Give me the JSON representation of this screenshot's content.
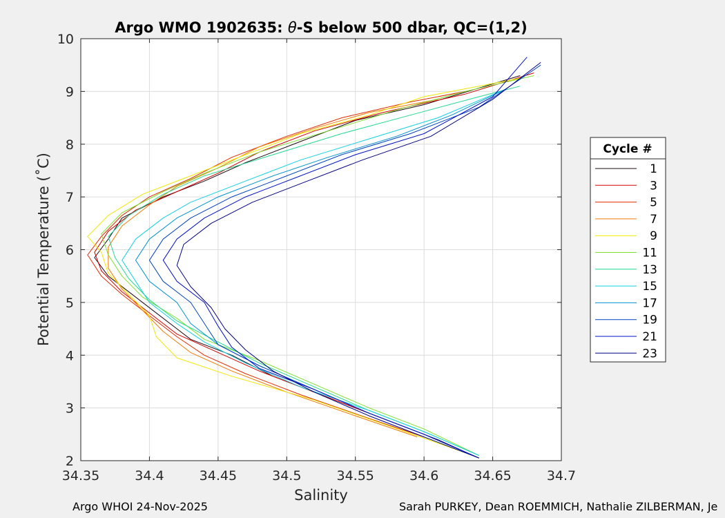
{
  "chart_data": {
    "type": "line",
    "title": "Argo WMO 1902635: θ-S below 500 dbar,  QC=(1,2)",
    "title_parts": [
      "Argo WMO 1902635: ",
      "θ",
      "-S below 500 dbar,  QC=(1,2)"
    ],
    "xlabel": "Salinity",
    "ylabel": "Potential Temperature (˚C)",
    "xlim": [
      34.35,
      34.7
    ],
    "ylim": [
      2,
      10
    ],
    "xticks": [
      34.35,
      34.4,
      34.45,
      34.5,
      34.55,
      34.6,
      34.65,
      34.7
    ],
    "xtick_labels": [
      "34.35",
      "34.4",
      "34.45",
      "34.5",
      "34.55",
      "34.6",
      "34.65",
      "34.7"
    ],
    "yticks": [
      2,
      3,
      4,
      5,
      6,
      7,
      8,
      9,
      10
    ],
    "ytick_labels": [
      "2",
      "3",
      "4",
      "5",
      "6",
      "7",
      "8",
      "9",
      "10"
    ],
    "grid": true,
    "legend": {
      "title": "Cycle #",
      "position": "right-outside",
      "entries": [
        "1",
        "3",
        "5",
        "7",
        "9",
        "11",
        "13",
        "15",
        "17",
        "19",
        "21",
        "23"
      ],
      "colors": [
        "#1c0a14",
        "#d40000",
        "#e02a00",
        "#f07a00",
        "#f0e800",
        "#80e030",
        "#20d890",
        "#10d0e0",
        "#0090d0",
        "#0040c0",
        "#0010c8",
        "#000080"
      ]
    },
    "series": [
      {
        "name": "1",
        "color": "#1c0a14",
        "points": [
          [
            34.64,
            2.05
          ],
          [
            34.61,
            2.4
          ],
          [
            34.57,
            2.8
          ],
          [
            34.53,
            3.2
          ],
          [
            34.49,
            3.6
          ],
          [
            34.46,
            4.0
          ],
          [
            34.43,
            4.3
          ],
          [
            34.41,
            4.7
          ],
          [
            34.39,
            5.1
          ],
          [
            34.37,
            5.5
          ],
          [
            34.36,
            5.85
          ],
          [
            34.37,
            6.2
          ],
          [
            34.38,
            6.6
          ],
          [
            34.41,
            7.0
          ],
          [
            34.44,
            7.3
          ],
          [
            34.47,
            7.65
          ],
          [
            34.51,
            8.05
          ],
          [
            34.55,
            8.45
          ],
          [
            34.6,
            8.75
          ],
          [
            34.67,
            9.3
          ]
        ]
      },
      {
        "name": "3",
        "color": "#d40000",
        "points": [
          [
            34.64,
            2.05
          ],
          [
            34.6,
            2.5
          ],
          [
            34.56,
            2.9
          ],
          [
            34.52,
            3.3
          ],
          [
            34.48,
            3.7
          ],
          [
            34.45,
            4.05
          ],
          [
            34.42,
            4.4
          ],
          [
            34.4,
            4.8
          ],
          [
            34.38,
            5.2
          ],
          [
            34.365,
            5.6
          ],
          [
            34.36,
            5.95
          ],
          [
            34.37,
            6.35
          ],
          [
            34.39,
            6.75
          ],
          [
            34.42,
            7.1
          ],
          [
            34.45,
            7.45
          ],
          [
            34.48,
            7.85
          ],
          [
            34.52,
            8.25
          ],
          [
            34.57,
            8.6
          ],
          [
            34.63,
            8.95
          ],
          [
            34.68,
            9.35
          ]
        ]
      },
      {
        "name": "5",
        "color": "#e02a00",
        "points": [
          [
            34.6,
            2.45
          ],
          [
            34.56,
            2.8
          ],
          [
            34.51,
            3.25
          ],
          [
            34.47,
            3.65
          ],
          [
            34.44,
            4.0
          ],
          [
            34.42,
            4.35
          ],
          [
            34.4,
            4.75
          ],
          [
            34.38,
            5.15
          ],
          [
            34.365,
            5.5
          ],
          [
            34.355,
            5.9
          ],
          [
            34.365,
            6.25
          ],
          [
            34.38,
            6.65
          ],
          [
            34.4,
            7.0
          ],
          [
            34.43,
            7.35
          ],
          [
            34.46,
            7.75
          ],
          [
            34.5,
            8.15
          ],
          [
            34.54,
            8.5
          ],
          [
            34.59,
            8.8
          ],
          [
            34.63,
            9.0
          ]
        ]
      },
      {
        "name": "7",
        "color": "#f07a00",
        "points": [
          [
            34.595,
            2.45
          ],
          [
            34.55,
            2.85
          ],
          [
            34.5,
            3.3
          ],
          [
            34.46,
            3.7
          ],
          [
            34.43,
            4.05
          ],
          [
            34.41,
            4.45
          ],
          [
            34.395,
            4.85
          ],
          [
            34.38,
            5.25
          ],
          [
            34.37,
            5.65
          ],
          [
            34.37,
            6.05
          ],
          [
            34.38,
            6.45
          ],
          [
            34.4,
            6.85
          ],
          [
            34.42,
            7.2
          ],
          [
            34.45,
            7.55
          ],
          [
            34.48,
            7.95
          ],
          [
            34.52,
            8.3
          ],
          [
            34.56,
            8.6
          ],
          [
            34.61,
            8.85
          ]
        ]
      },
      {
        "name": "9",
        "color": "#f0e800",
        "points": [
          [
            34.63,
            2.15
          ],
          [
            34.57,
            2.7
          ],
          [
            34.52,
            3.15
          ],
          [
            34.46,
            3.6
          ],
          [
            34.42,
            3.95
          ],
          [
            34.405,
            4.35
          ],
          [
            34.4,
            4.75
          ],
          [
            34.385,
            5.15
          ],
          [
            34.37,
            5.55
          ],
          [
            34.365,
            5.95
          ],
          [
            34.355,
            6.25
          ],
          [
            34.37,
            6.65
          ],
          [
            34.395,
            7.05
          ],
          [
            34.43,
            7.4
          ],
          [
            34.47,
            7.8
          ],
          [
            34.51,
            8.2
          ],
          [
            34.56,
            8.55
          ],
          [
            34.6,
            8.9
          ],
          [
            34.67,
            9.25
          ]
        ]
      },
      {
        "name": "11",
        "color": "#80e030",
        "points": [
          [
            34.64,
            2.1
          ],
          [
            34.6,
            2.6
          ],
          [
            34.56,
            3.0
          ],
          [
            34.52,
            3.45
          ],
          [
            34.48,
            3.9
          ],
          [
            34.44,
            4.3
          ],
          [
            34.42,
            4.7
          ],
          [
            34.395,
            5.1
          ],
          [
            34.38,
            5.5
          ],
          [
            34.37,
            5.9
          ],
          [
            34.365,
            6.3
          ],
          [
            34.38,
            6.7
          ],
          [
            34.41,
            7.1
          ],
          [
            34.44,
            7.45
          ],
          [
            34.48,
            7.85
          ],
          [
            34.53,
            8.25
          ],
          [
            34.58,
            8.65
          ],
          [
            34.63,
            9.0
          ],
          [
            34.68,
            9.3
          ]
        ]
      },
      {
        "name": "13",
        "color": "#20d890",
        "points": [
          [
            34.64,
            2.1
          ],
          [
            34.6,
            2.55
          ],
          [
            34.56,
            2.95
          ],
          [
            34.52,
            3.4
          ],
          [
            34.48,
            3.85
          ],
          [
            34.45,
            4.25
          ],
          [
            34.42,
            4.65
          ],
          [
            34.4,
            5.05
          ],
          [
            34.385,
            5.45
          ],
          [
            34.375,
            5.85
          ],
          [
            34.37,
            6.25
          ],
          [
            34.385,
            6.65
          ],
          [
            34.41,
            7.05
          ],
          [
            34.44,
            7.4
          ],
          [
            34.49,
            7.8
          ],
          [
            34.54,
            8.2
          ],
          [
            34.59,
            8.55
          ],
          [
            34.64,
            8.9
          ],
          [
            34.67,
            9.1
          ]
        ]
      },
      {
        "name": "15",
        "color": "#10d0e0",
        "points": [
          [
            34.64,
            2.1
          ],
          [
            34.6,
            2.55
          ],
          [
            34.56,
            2.95
          ],
          [
            34.51,
            3.4
          ],
          [
            34.47,
            3.85
          ],
          [
            34.44,
            4.25
          ],
          [
            34.42,
            4.6
          ],
          [
            34.4,
            5.0
          ],
          [
            34.39,
            5.4
          ],
          [
            34.38,
            5.8
          ],
          [
            34.39,
            6.2
          ],
          [
            34.41,
            6.6
          ],
          [
            34.43,
            6.9
          ],
          [
            34.47,
            7.3
          ],
          [
            34.51,
            7.7
          ],
          [
            34.56,
            8.1
          ],
          [
            34.61,
            8.5
          ],
          [
            34.66,
            9.05
          ]
        ]
      },
      {
        "name": "17",
        "color": "#0090d0",
        "points": [
          [
            34.64,
            2.05
          ],
          [
            34.6,
            2.5
          ],
          [
            34.56,
            2.9
          ],
          [
            34.52,
            3.35
          ],
          [
            34.48,
            3.8
          ],
          [
            34.45,
            4.2
          ],
          [
            34.43,
            4.6
          ],
          [
            34.42,
            5.0
          ],
          [
            34.4,
            5.4
          ],
          [
            34.39,
            5.8
          ],
          [
            34.4,
            6.2
          ],
          [
            34.42,
            6.6
          ],
          [
            34.45,
            7.0
          ],
          [
            34.49,
            7.4
          ],
          [
            34.53,
            7.75
          ],
          [
            34.58,
            8.15
          ],
          [
            34.62,
            8.55
          ],
          [
            34.66,
            9.05
          ]
        ]
      },
      {
        "name": "19",
        "color": "#0040c0",
        "points": [
          [
            34.64,
            2.05
          ],
          [
            34.6,
            2.5
          ],
          [
            34.56,
            2.9
          ],
          [
            34.52,
            3.35
          ],
          [
            34.48,
            3.8
          ],
          [
            34.45,
            4.2
          ],
          [
            34.44,
            4.6
          ],
          [
            34.43,
            5.0
          ],
          [
            34.41,
            5.4
          ],
          [
            34.4,
            5.8
          ],
          [
            34.41,
            6.2
          ],
          [
            34.43,
            6.6
          ],
          [
            34.46,
            7.0
          ],
          [
            34.5,
            7.4
          ],
          [
            34.54,
            7.8
          ],
          [
            34.59,
            8.2
          ],
          [
            34.64,
            8.7
          ],
          [
            34.685,
            9.5
          ]
        ]
      },
      {
        "name": "21",
        "color": "#0010c8",
        "points": [
          [
            34.64,
            2.05
          ],
          [
            34.6,
            2.5
          ],
          [
            34.56,
            2.9
          ],
          [
            34.52,
            3.35
          ],
          [
            34.48,
            3.75
          ],
          [
            34.46,
            4.15
          ],
          [
            34.45,
            4.55
          ],
          [
            34.44,
            5.0
          ],
          [
            34.42,
            5.4
          ],
          [
            34.41,
            5.8
          ],
          [
            34.42,
            6.2
          ],
          [
            34.44,
            6.6
          ],
          [
            34.47,
            7.0
          ],
          [
            34.51,
            7.4
          ],
          [
            34.55,
            7.8
          ],
          [
            34.6,
            8.2
          ],
          [
            34.65,
            8.9
          ],
          [
            34.675,
            9.65
          ]
        ]
      },
      {
        "name": "23",
        "color": "#000080",
        "points": [
          [
            34.64,
            2.05
          ],
          [
            34.6,
            2.45
          ],
          [
            34.56,
            2.85
          ],
          [
            34.52,
            3.3
          ],
          [
            34.49,
            3.7
          ],
          [
            34.47,
            4.1
          ],
          [
            34.455,
            4.5
          ],
          [
            34.445,
            4.9
          ],
          [
            34.43,
            5.3
          ],
          [
            34.42,
            5.7
          ],
          [
            34.425,
            6.1
          ],
          [
            34.445,
            6.5
          ],
          [
            34.475,
            6.9
          ],
          [
            34.515,
            7.3
          ],
          [
            34.555,
            7.7
          ],
          [
            34.605,
            8.15
          ],
          [
            34.65,
            8.85
          ],
          [
            34.685,
            9.55
          ]
        ]
      }
    ]
  },
  "footer": {
    "left": "Argo WHOI 24-Nov-2025",
    "right": "Sarah PURKEY, Dean ROEMMICH, Nathalie ZILBERMAN, Je"
  }
}
